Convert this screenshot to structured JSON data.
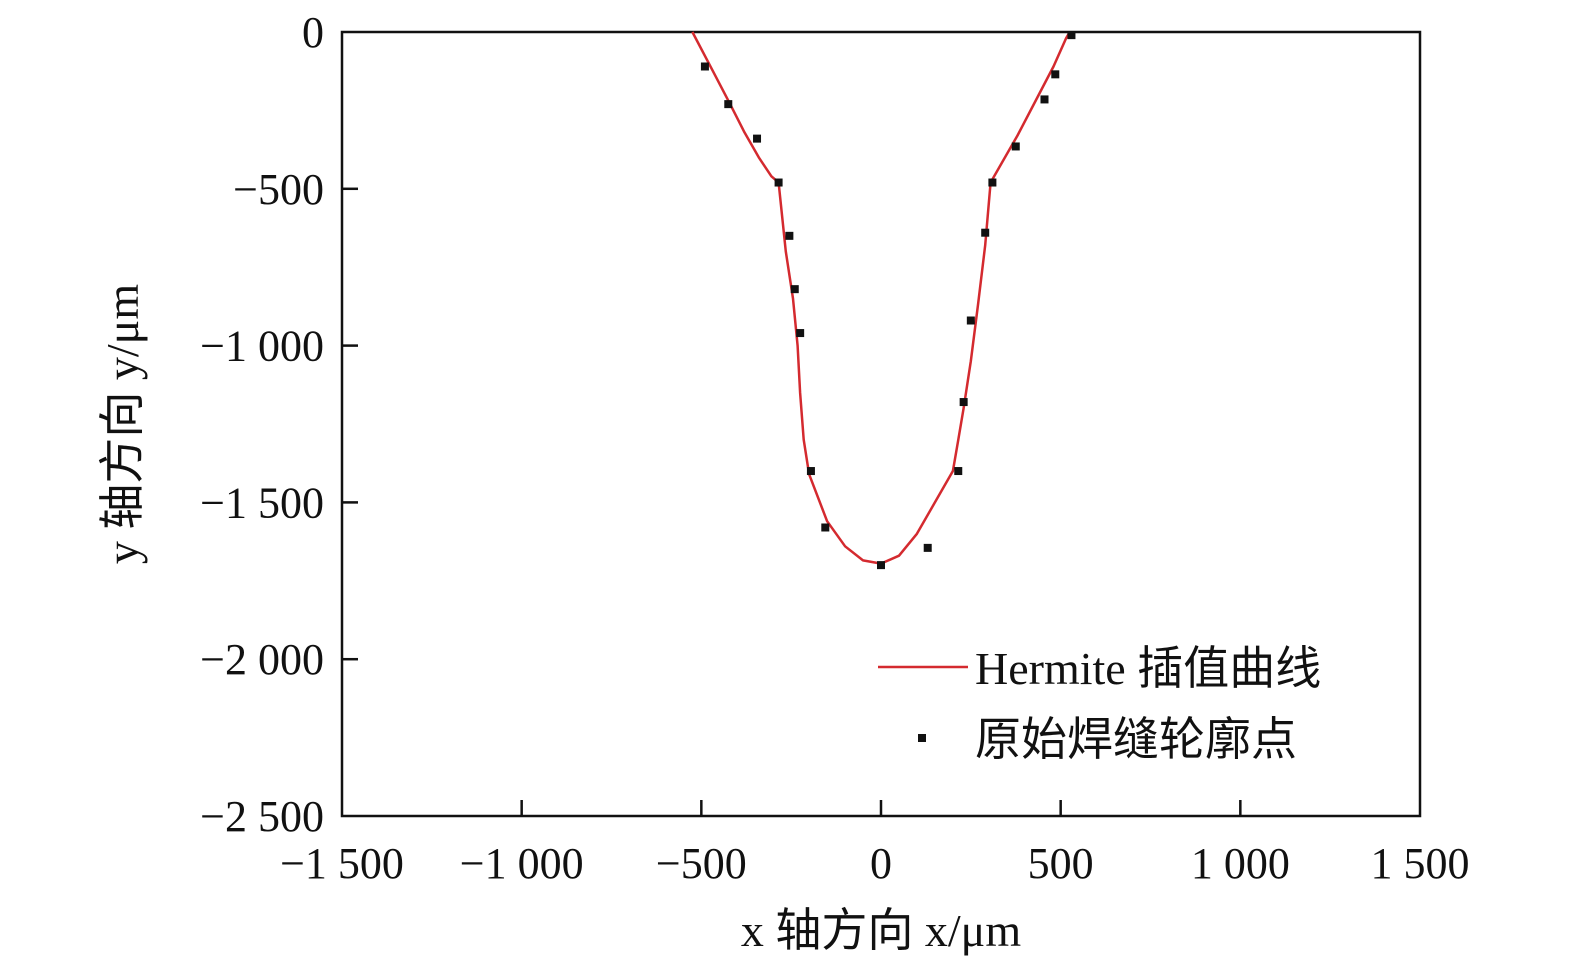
{
  "chart_data": {
    "type": "scatter",
    "xlabel": "x 轴方向 x/μm",
    "ylabel": "y 轴方向 y/μm",
    "xlim": [
      -1500,
      1500
    ],
    "ylim": [
      -2500,
      0
    ],
    "x_ticks": [
      -1500,
      -1000,
      -500,
      0,
      500,
      1000,
      1500
    ],
    "x_tick_labels": [
      "−1 500",
      "−1 000",
      "−500",
      "0",
      "500",
      "1 000",
      "1 500"
    ],
    "y_ticks": [
      0,
      -500,
      -1000,
      -1500,
      -2000,
      -2500
    ],
    "y_tick_labels": [
      "0",
      "−500",
      "−1 000",
      "−1 500",
      "−2 000",
      "−2 500"
    ],
    "grid": false,
    "legend_position": "bottom-right",
    "series": [
      {
        "name": "Hermite 插值曲线",
        "kind": "line",
        "color": "#d42a2f",
        "x": [
          -525,
          -470,
          -420,
          -380,
          -340,
          -305,
          -285,
          -265,
          -245,
          -232,
          -225,
          -215,
          -200,
          -150,
          -100,
          -50,
          0,
          50,
          100,
          150,
          200,
          215,
          230,
          250,
          270,
          290,
          305,
          330,
          380,
          430,
          480,
          515,
          525
        ],
        "y": [
          0,
          -120,
          -230,
          -320,
          -400,
          -460,
          -480,
          -700,
          -850,
          -1000,
          -1150,
          -1300,
          -1410,
          -1560,
          -1640,
          -1685,
          -1695,
          -1670,
          -1600,
          -1500,
          -1400,
          -1300,
          -1200,
          -1050,
          -870,
          -680,
          -480,
          -430,
          -330,
          -220,
          -110,
          -20,
          0
        ]
      },
      {
        "name": "原始焊缝轮廓点",
        "kind": "scatter",
        "color": "#111111",
        "x": [
          -490,
          -425,
          -345,
          -285,
          -255,
          -240,
          -225,
          -195,
          -155,
          0,
          130,
          215,
          230,
          250,
          290,
          310,
          375,
          455,
          485,
          530
        ],
        "y": [
          -110,
          -230,
          -340,
          -480,
          -650,
          -820,
          -960,
          -1400,
          -1580,
          -1700,
          -1645,
          -1400,
          -1180,
          -920,
          -640,
          -480,
          -365,
          -215,
          -135,
          -10
        ]
      }
    ]
  }
}
